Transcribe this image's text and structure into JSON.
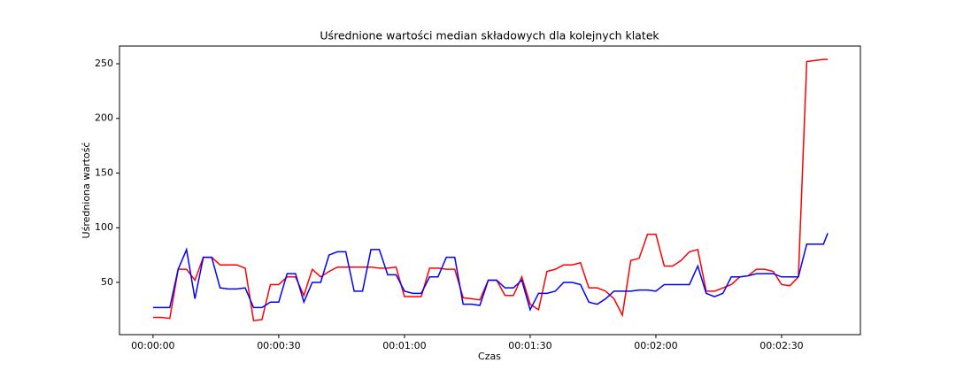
{
  "chart_data": {
    "type": "line",
    "title": "Uśrednione wartości median składowych dla kolejnych klatek",
    "x_label": "Czas",
    "y_label": "Uśredniona wartość",
    "x": [
      0,
      2,
      4,
      6,
      8,
      10,
      12,
      14,
      16,
      18,
      20,
      22,
      24,
      26,
      28,
      30,
      32,
      34,
      36,
      38,
      40,
      42,
      44,
      46,
      48,
      50,
      52,
      54,
      56,
      58,
      60,
      62,
      64,
      66,
      68,
      70,
      72,
      74,
      76,
      78,
      80,
      82,
      84,
      86,
      88,
      90,
      92,
      94,
      96,
      98,
      100,
      102,
      104,
      106,
      108,
      110,
      112,
      114,
      116,
      118,
      120,
      122,
      124,
      126,
      128,
      130,
      132,
      134,
      136,
      138,
      140,
      142,
      144,
      146,
      148,
      150,
      152,
      154,
      156,
      158,
      160,
      161
    ],
    "series": [
      {
        "color": "#ff0000",
        "values": [
          18,
          18,
          17,
          62,
          62,
          52,
          73,
          73,
          66,
          66,
          66,
          63,
          15,
          16,
          48,
          48,
          55,
          55,
          38,
          62,
          55,
          60,
          64,
          64,
          64,
          64,
          64,
          63,
          63,
          64,
          37,
          37,
          37,
          63,
          63,
          62,
          62,
          36,
          35,
          34,
          52,
          52,
          38,
          38,
          55,
          30,
          25,
          60,
          62,
          66,
          66,
          68,
          45,
          45,
          42,
          35,
          20,
          70,
          72,
          94,
          94,
          65,
          65,
          70,
          78,
          80,
          42,
          42,
          45,
          48,
          55,
          56,
          62,
          62,
          60,
          48,
          47,
          55,
          252,
          253,
          254,
          254
        ]
      },
      {
        "color": "#0000ff",
        "values": [
          27,
          27,
          27,
          62,
          80,
          35,
          73,
          73,
          45,
          44,
          44,
          45,
          27,
          27,
          32,
          32,
          58,
          58,
          32,
          50,
          50,
          75,
          78,
          78,
          42,
          42,
          80,
          80,
          57,
          57,
          42,
          40,
          40,
          55,
          55,
          73,
          73,
          30,
          30,
          29,
          52,
          52,
          45,
          45,
          52,
          25,
          40,
          40,
          42,
          50,
          50,
          48,
          32,
          30,
          35,
          42,
          42,
          42,
          43,
          43,
          42,
          48,
          48,
          48,
          48,
          65,
          40,
          37,
          40,
          55,
          55,
          56,
          58,
          58,
          58,
          55,
          55,
          55,
          85,
          85,
          85,
          95
        ]
      }
    ],
    "xlim": [
      -8,
      168.8
    ],
    "ylim": [
      2.2,
      266.2
    ],
    "xticks": [
      {
        "value": 0,
        "label": "00:00:00"
      },
      {
        "value": 30,
        "label": "00:00:30"
      },
      {
        "value": 60,
        "label": "00:01:00"
      },
      {
        "value": 90,
        "label": "00:01:30"
      },
      {
        "value": 120,
        "label": "00:02:00"
      },
      {
        "value": 150,
        "label": "00:02:30"
      }
    ],
    "yticks": [
      50,
      100,
      150,
      200,
      250
    ]
  }
}
